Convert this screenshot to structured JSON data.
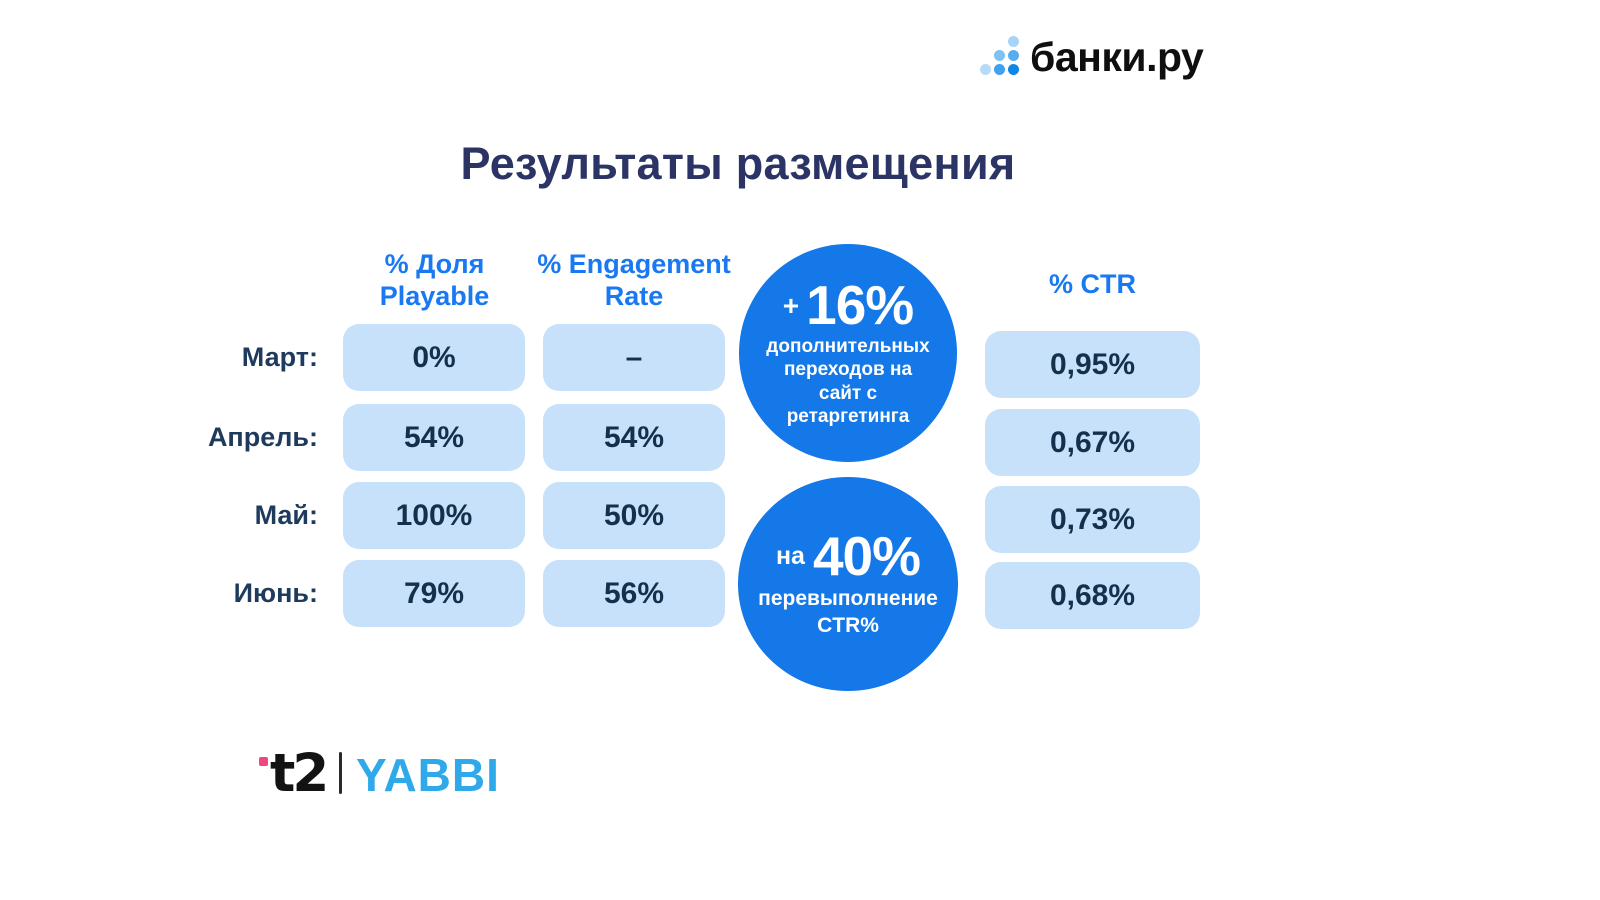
{
  "header_logo": {
    "text": "банки.ру",
    "dots": [
      "#a4d4f8",
      "#7cc3f4",
      "#56aef0",
      "#b4dbfa",
      "#3ea2ee",
      "#0e86e6"
    ]
  },
  "title": "Результаты размещения",
  "chart_data": {
    "type": "table",
    "title": "Результаты размещения",
    "columns": [
      "% Доля Playable",
      "% Engagement Rate",
      "% CTR"
    ],
    "row_labels": [
      "Март:",
      "Апрель:",
      "Май:",
      "Июнь:"
    ],
    "rows": [
      {
        "month": "Март:",
        "playable": "0%",
        "engagement_rate": "–",
        "ctr": "0,95%"
      },
      {
        "month": "Апрель:",
        "playable": "54%",
        "engagement_rate": "54%",
        "ctr": "0,67%"
      },
      {
        "month": "Май:",
        "playable": "100%",
        "engagement_rate": "50%",
        "ctr": "0,73%"
      },
      {
        "month": "Июнь:",
        "playable": "79%",
        "engagement_rate": "56%",
        "ctr": "0,68%"
      }
    ],
    "annotations": [
      "+ 16% дополнительных переходов на сайт с ретаргетинга",
      "на 40% перевыполнение CTR%"
    ]
  },
  "badges": [
    {
      "prefix": "+",
      "value": "16%",
      "caption_lines": [
        "дополнительных",
        "переходов на",
        "сайт с",
        "ретаргетинга"
      ]
    },
    {
      "prefix": "на",
      "value": "40%",
      "caption_lines": [
        "перевыполнение",
        "CTR%"
      ]
    }
  ],
  "footer": {
    "t2_text": "t2",
    "yabbi_text": "YABBI"
  },
  "colors": {
    "accent_blue": "#1478e8",
    "header_blue": "#1879f2",
    "cell_background": "#c8e1fb",
    "title_navy": "#2b3464",
    "value_navy": "#14304c",
    "label_navy": "#1e3a5c",
    "yabbi_blue": "#2fa9e9",
    "t2_pink": "#f0477f",
    "banki_black": "#0e0f10"
  }
}
